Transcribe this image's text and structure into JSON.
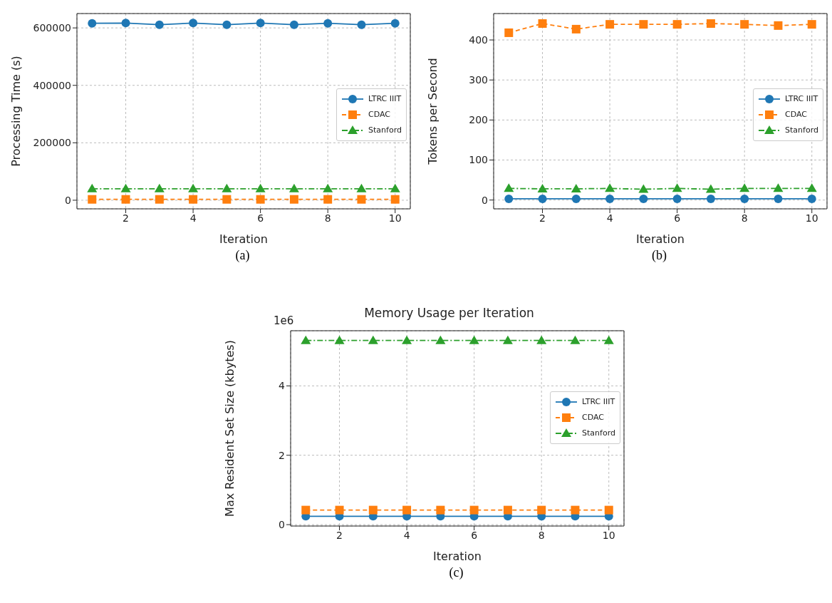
{
  "chart_data": [
    {
      "type": "line",
      "xlabel": "Iteration",
      "ylabel": "Processing Time (s)",
      "x": [
        1,
        2,
        3,
        4,
        5,
        6,
        7,
        8,
        9,
        10
      ],
      "xlim": [
        0.55,
        10.45
      ],
      "xticks": [
        2,
        4,
        6,
        8,
        10
      ],
      "ylim": [
        -30000,
        650000
      ],
      "yticks": [
        0,
        200000,
        400000,
        600000
      ],
      "grid": true,
      "legend": "right",
      "annotations": [
        "(a)"
      ],
      "series": [
        {
          "name": "LTRC IIIT",
          "color": "#1f77b4",
          "marker": "circle",
          "line_style": "solid",
          "values": [
            616000,
            617000,
            611000,
            617000,
            611000,
            617000,
            611000,
            616000,
            611000,
            616000
          ]
        },
        {
          "name": "CDAC",
          "color": "#ff7f0e",
          "marker": "square",
          "line_style": "dashed",
          "values": [
            3000,
            3000,
            3000,
            3000,
            3000,
            3000,
            3000,
            3000,
            3000,
            3000
          ]
        },
        {
          "name": "Stanford",
          "color": "#2ca02c",
          "marker": "triangle",
          "line_style": "dashdot",
          "values": [
            40000,
            40000,
            40000,
            40000,
            40000,
            40000,
            40000,
            40000,
            40000,
            40000
          ]
        }
      ]
    },
    {
      "type": "line",
      "xlabel": "Iteration",
      "ylabel": "Tokens per Second",
      "x": [
        1,
        2,
        3,
        4,
        5,
        6,
        7,
        8,
        9,
        10
      ],
      "xlim": [
        0.55,
        10.45
      ],
      "xticks": [
        2,
        4,
        6,
        8,
        10
      ],
      "ylim": [
        -22,
        466
      ],
      "yticks": [
        0,
        100,
        200,
        300,
        400
      ],
      "grid": true,
      "legend": "right",
      "annotations": [
        "(b)"
      ],
      "series": [
        {
          "name": "LTRC IIIT",
          "color": "#1f77b4",
          "marker": "circle",
          "line_style": "solid",
          "values": [
            3,
            3,
            3,
            3,
            3,
            3,
            3,
            3,
            3,
            3
          ]
        },
        {
          "name": "CDAC",
          "color": "#ff7f0e",
          "marker": "square",
          "line_style": "dashed",
          "values": [
            418,
            441,
            427,
            439,
            439,
            439,
            441,
            439,
            436,
            439
          ]
        },
        {
          "name": "Stanford",
          "color": "#2ca02c",
          "marker": "triangle",
          "line_style": "dashdot",
          "values": [
            29,
            28,
            28,
            29,
            27,
            29,
            27,
            29,
            29,
            29
          ]
        }
      ]
    },
    {
      "type": "line",
      "title": "Memory Usage per Iteration",
      "xlabel": "Iteration",
      "ylabel": "Max Resident Set Size (kbytes)",
      "x": [
        1,
        2,
        3,
        4,
        5,
        6,
        7,
        8,
        9,
        10
      ],
      "xlim": [
        0.55,
        10.45
      ],
      "xticks": [
        2,
        4,
        6,
        8,
        10
      ],
      "ylim": [
        -0.04,
        5.59
      ],
      "yticks": [
        0,
        2,
        4
      ],
      "grid": true,
      "legend": "right",
      "annotations": [
        "1e6",
        "(c)"
      ],
      "series": [
        {
          "name": "LTRC IIIT",
          "color": "#1f77b4",
          "marker": "circle",
          "line_style": "solid",
          "values": [
            0.24,
            0.24,
            0.24,
            0.24,
            0.24,
            0.24,
            0.24,
            0.24,
            0.24,
            0.24
          ]
        },
        {
          "name": "CDAC",
          "color": "#ff7f0e",
          "marker": "square",
          "line_style": "dashed",
          "values": [
            0.42,
            0.42,
            0.42,
            0.42,
            0.42,
            0.42,
            0.42,
            0.42,
            0.42,
            0.42
          ]
        },
        {
          "name": "Stanford",
          "color": "#2ca02c",
          "marker": "triangle",
          "line_style": "dashdot",
          "values": [
            5.31,
            5.31,
            5.31,
            5.31,
            5.31,
            5.31,
            5.31,
            5.31,
            5.31,
            5.31
          ]
        }
      ]
    }
  ]
}
